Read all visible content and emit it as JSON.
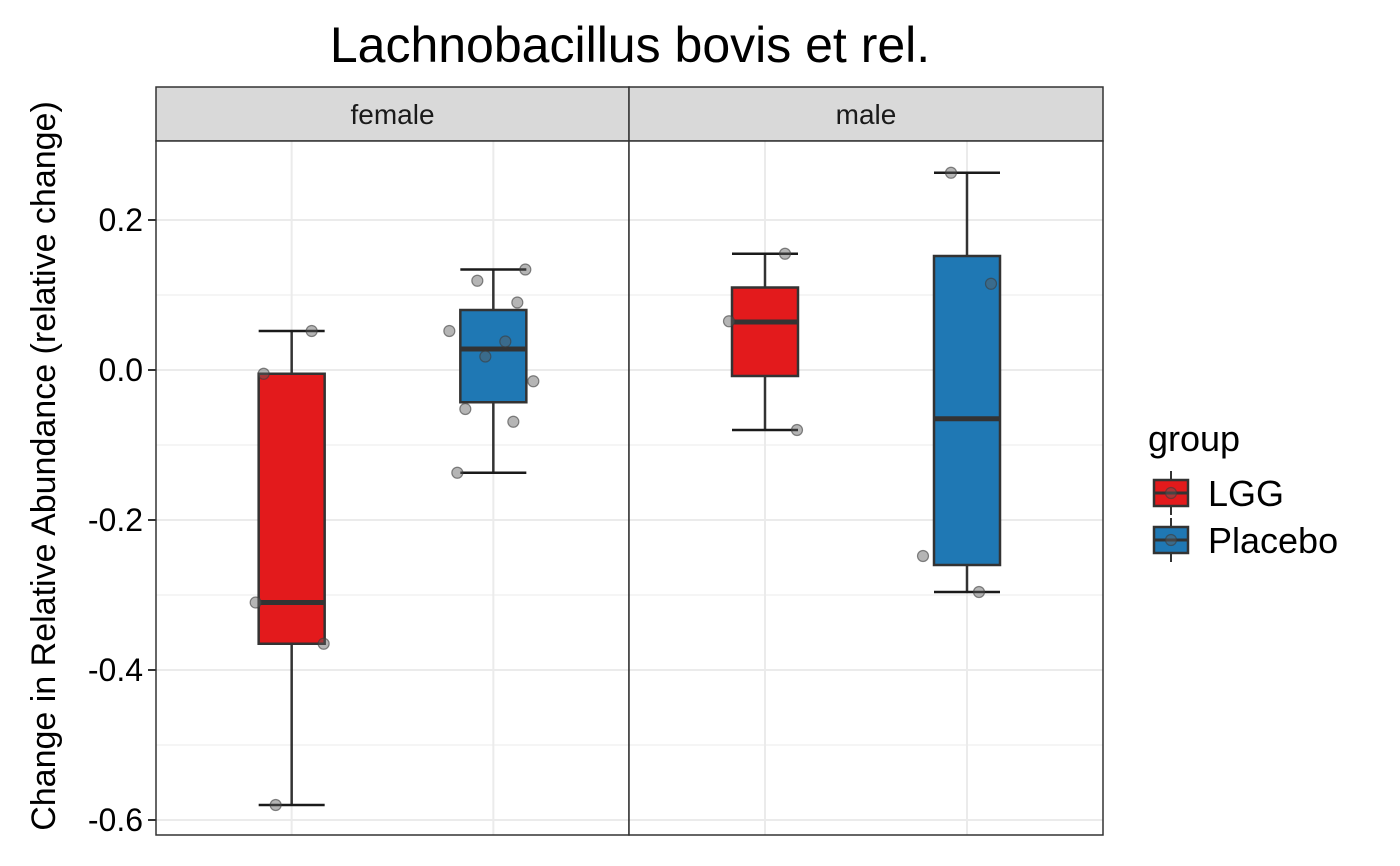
{
  "chart_data": {
    "type": "box",
    "title": "Lachnobacillus bovis et rel.",
    "ylabel": "Change in Relative Abundance (relative change)",
    "ylim": [
      -0.62,
      0.3
    ],
    "yticks": [
      {
        "value": 0.2,
        "label": "0.2"
      },
      {
        "value": 0.0,
        "label": "0.0"
      },
      {
        "value": -0.2,
        "label": "-0.2"
      },
      {
        "value": -0.4,
        "label": "-0.4"
      },
      {
        "value": -0.6,
        "label": "-0.6"
      }
    ],
    "grid": true,
    "legend": {
      "title": "group",
      "placement": "right",
      "items": [
        {
          "label": "LGG",
          "color": "#E31A1C"
        },
        {
          "label": "Placebo",
          "color": "#1F78B4"
        }
      ]
    },
    "panels": [
      {
        "name": "female",
        "boxes": [
          {
            "group": "LGG",
            "color": "#E31A1C",
            "whisker_low": -0.58,
            "q1": -0.365,
            "median": -0.31,
            "q3": -0.005,
            "whisker_high": 0.052,
            "points": [
              -0.005,
              0.052,
              -0.31,
              -0.365,
              -0.58
            ]
          },
          {
            "group": "Placebo",
            "color": "#1F78B4",
            "whisker_low": -0.137,
            "q1": -0.043,
            "median": 0.028,
            "q3": 0.08,
            "whisker_high": 0.134,
            "points": [
              0.134,
              0.119,
              0.09,
              0.052,
              0.038,
              0.018,
              -0.015,
              -0.052,
              -0.069,
              -0.137
            ]
          }
        ]
      },
      {
        "name": "male",
        "boxes": [
          {
            "group": "LGG",
            "color": "#E31A1C",
            "whisker_low": -0.08,
            "q1": -0.008,
            "median": 0.064,
            "q3": 0.11,
            "whisker_high": 0.155,
            "points": [
              0.155,
              0.065,
              -0.08
            ]
          },
          {
            "group": "Placebo",
            "color": "#1F78B4",
            "whisker_low": -0.296,
            "q1": -0.26,
            "median": -0.065,
            "q3": 0.152,
            "whisker_high": 0.263,
            "points": [
              0.263,
              0.115,
              -0.248,
              -0.296
            ]
          }
        ]
      }
    ]
  }
}
